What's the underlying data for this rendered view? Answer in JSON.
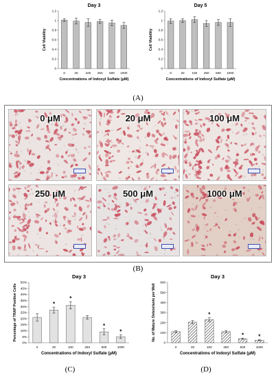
{
  "figure": {
    "labels": {
      "A": "(A)",
      "B": "(B)",
      "C": "(C)",
      "D": "(D)"
    }
  },
  "micrographs": {
    "panels": [
      {
        "title": "0 μM",
        "density": 0.85,
        "tint": "#ebe4e2"
      },
      {
        "title": "20 μM",
        "density": 0.95,
        "tint": "#efe7e3"
      },
      {
        "title": "100 μM",
        "density": 1.0,
        "tint": "#eee6e3"
      },
      {
        "title": "250 μM",
        "density": 0.8,
        "tint": "#ece5e3"
      },
      {
        "title": "500 μM",
        "density": 0.65,
        "tint": "#e8e3e3"
      },
      {
        "title": "1000 μM",
        "density": 0.55,
        "tint": "#e2cfc6"
      }
    ],
    "stain_color": "#c84a5a"
  },
  "chart_data": [
    {
      "type": "bar",
      "title": "Day 3",
      "xlabel": "Concentrations of Indoxyl Sulfate (μM)",
      "ylabel": "Cell Viability",
      "categories": [
        "0",
        "20",
        "100",
        "250",
        "500",
        "1000"
      ],
      "values": [
        1.01,
        0.99,
        0.96,
        0.98,
        0.95,
        0.9
      ],
      "errors": [
        0.03,
        0.06,
        0.08,
        0.04,
        0.06,
        0.06
      ],
      "ylim": [
        0,
        1.2
      ],
      "yticks": [
        "0",
        "0.2",
        "0.4",
        "0.6",
        "0.8",
        "1",
        "1.2"
      ],
      "bar_color": "#bfbfbf",
      "pattern": "solid"
    },
    {
      "type": "bar",
      "title": "Day 5",
      "xlabel": "Concentrations of Indoxyl Sulfate (μM)",
      "ylabel": "Cell Viability",
      "categories": [
        "0",
        "20",
        "100",
        "250",
        "500",
        "1000"
      ],
      "values": [
        0.99,
        1.0,
        1.02,
        0.94,
        0.96,
        0.96
      ],
      "errors": [
        0.05,
        0.04,
        0.06,
        0.06,
        0.06,
        0.08
      ],
      "ylim": [
        0,
        1.2
      ],
      "yticks": [
        "0",
        "0.2",
        "0.4",
        "0.6",
        "0.8",
        "1",
        "1.2"
      ],
      "bar_color": "#bfbfbf",
      "pattern": "solid"
    },
    {
      "type": "bar",
      "title": "Day 3",
      "xlabel": "Concentrations of Indoxyl Sulfate (μM)",
      "ylabel": "Percentage of TRAP Positive Cells",
      "categories": [
        "0",
        "20",
        "100",
        "250",
        "500",
        "1000"
      ],
      "values": [
        21,
        27,
        31,
        21,
        9,
        5
      ],
      "errors": [
        3,
        2.5,
        3,
        1.5,
        2.5,
        1.5
      ],
      "significance": [
        "",
        "*",
        "*",
        "",
        "*",
        "*"
      ],
      "ylim": [
        0,
        50
      ],
      "yticks": [
        "0%",
        "5%",
        "10%",
        "15%",
        "20%",
        "25%",
        "30%",
        "35%",
        "40%",
        "45%",
        "50%"
      ],
      "bar_color": "#e2e2e2",
      "pattern": "solid"
    },
    {
      "type": "bar",
      "title": "Day 3",
      "xlabel": "Concentrations of Indoxyl Sulfate (μM)",
      "ylabel": "No. of Mature Osteoclasts per Well",
      "categories": [
        "0",
        "20",
        "100",
        "250",
        "500",
        "1000"
      ],
      "values": [
        110,
        205,
        230,
        110,
        40,
        25
      ],
      "errors": [
        10,
        15,
        18,
        12,
        6,
        5
      ],
      "significance": [
        "",
        "",
        "*",
        "",
        "*",
        "*"
      ],
      "ylim": [
        0,
        600
      ],
      "yticks": [
        "0",
        "100",
        "200",
        "300",
        "400",
        "500",
        "600"
      ],
      "bar_color": "#ffffff",
      "pattern": "hatched"
    }
  ]
}
